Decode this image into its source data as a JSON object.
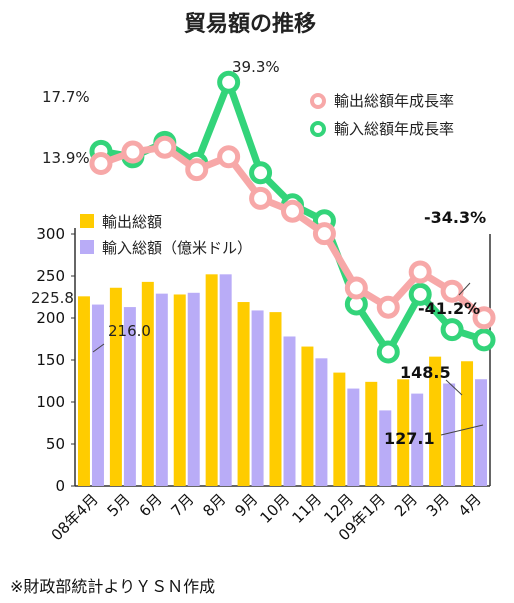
{
  "chart_data": {
    "type": "bar",
    "title": "貿易額の推移",
    "source_note": "※財政部統計よりＹＳＮ作成",
    "categories": [
      "08年4月",
      "5月",
      "6月",
      "7月",
      "8月",
      "9月",
      "10月",
      "11月",
      "12月",
      "09年1月",
      "2月",
      "3月",
      "4月"
    ],
    "ylim": [
      0,
      300
    ],
    "yticks": [
      0,
      50,
      100,
      150,
      200,
      250,
      300
    ],
    "series": [
      {
        "name": "輸出総額",
        "color": "#ffcc00",
        "values": [
          225.8,
          236,
          243,
          228,
          252,
          219,
          207,
          166,
          135,
          124,
          127,
          154,
          148.5
        ]
      },
      {
        "name": "輸入総額（億米ドル）",
        "color": "#b9acf7",
        "values": [
          216.0,
          213,
          229,
          230,
          252,
          209,
          178,
          152,
          116,
          90,
          110,
          122,
          127.1
        ]
      }
    ],
    "bar_labels": {
      "export_first": "225.8",
      "import_first": "216.0",
      "export_last": "148.5",
      "import_last": "127.1"
    },
    "growth_lines": [
      {
        "name": "輸出総額年成長率",
        "color": "#f7a8a8",
        "values": [
          13.9,
          17.5,
          19.0,
          12.0,
          16.0,
          3.0,
          -1.0,
          -8.0,
          -25.0,
          -31.0,
          -20.0,
          -26.0,
          -34.3
        ]
      },
      {
        "name": "輸入総額年成長率",
        "color": "#33d47a",
        "values": [
          17.7,
          16.0,
          20.5,
          14.0,
          39.3,
          11.0,
          1.0,
          -4.0,
          -30.0,
          -45.0,
          -27.0,
          -38.0,
          -41.2
        ]
      }
    ],
    "growth_labels": {
      "import_first": "17.7%",
      "export_first": "13.9%",
      "import_peak": "39.3%",
      "export_last": "-34.3%",
      "import_last": "-41.2%"
    },
    "growth_range": [
      -60,
      50
    ]
  }
}
